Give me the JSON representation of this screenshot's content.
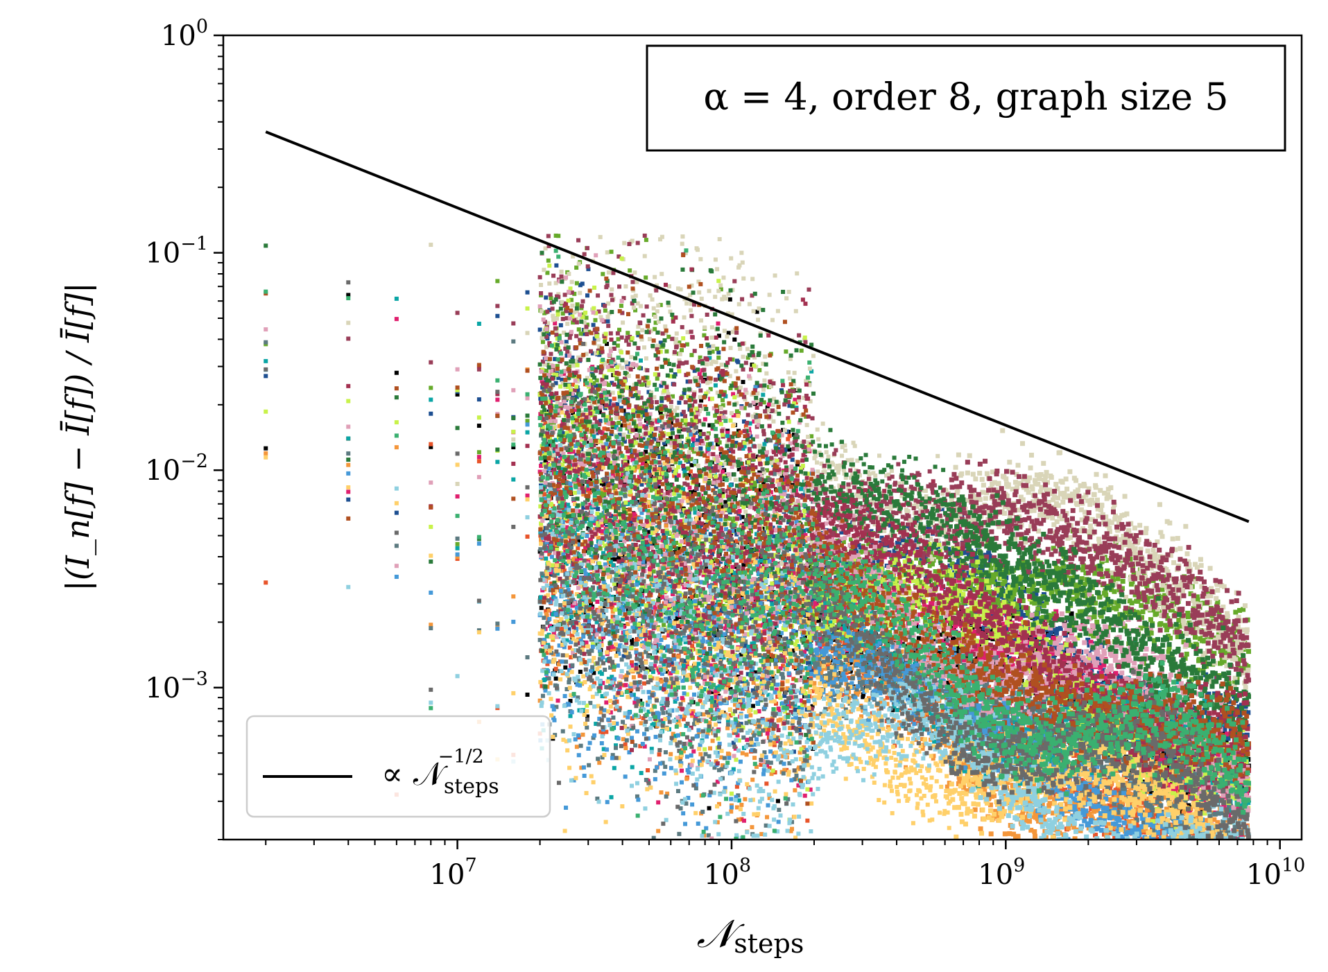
{
  "chart_data": {
    "type": "scatter",
    "title": "",
    "annotation": "α = 4, order 8, graph size 5",
    "xlabel": {
      "symbol": "𝒩",
      "subscript": "steps"
    },
    "ylabel": "|(I_n[f] − Ī[f]) / Ī[f]|",
    "xscale": "log",
    "yscale": "log",
    "xlim": [
      1400000,
      12000000000
    ],
    "ylim": [
      0.0002,
      1
    ],
    "x_ticks": [
      {
        "value": 10000000,
        "base": "10",
        "exp": "7"
      },
      {
        "value": 100000000,
        "base": "10",
        "exp": "8"
      },
      {
        "value": 1000000000,
        "base": "10",
        "exp": "9"
      },
      {
        "value": 10000000000,
        "base": "10",
        "exp": "10"
      }
    ],
    "y_ticks": [
      {
        "value": 1,
        "base": "10",
        "exp": "0"
      },
      {
        "value": 0.1,
        "base": "10",
        "exp": "−1"
      },
      {
        "value": 0.01,
        "base": "10",
        "exp": "−2"
      },
      {
        "value": 0.001,
        "base": "10",
        "exp": "−3"
      }
    ],
    "reference_line": {
      "name": "∝ 𝒩_steps^(−1/2)",
      "x": [
        2000000,
        7700000000
      ],
      "y": [
        0.36,
        0.0058
      ],
      "color": "#000000"
    },
    "legend": {
      "position": "lower-left",
      "prefix": "∝ 𝒩",
      "subscript": "steps",
      "exponent": "−1/2"
    },
    "series_count": 20,
    "series_colors": [
      "#000000",
      "#e8542a",
      "#f4963a",
      "#1d4f91",
      "#e01f6e",
      "#66aa2a",
      "#0aa5a5",
      "#d9d5b8",
      "#993d58",
      "#5c7a80",
      "#c8f24a",
      "#4599d8",
      "#ffd06a",
      "#e0a0b8",
      "#2a7a3a",
      "#a33050",
      "#8fd0e0",
      "#b05020",
      "#6a6a6a",
      "#3ab070"
    ],
    "series_summary": "Relative error of 20 independent runs versus number of steps; error decays roughly as N^(-1/2), from ~1e-2..1e-1 at 2e6 steps to ~2e-4..4e-3 at 7.7e9 steps."
  }
}
